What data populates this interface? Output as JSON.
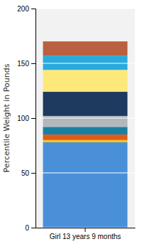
{
  "chart_data": {
    "type": "bar",
    "stacked": true,
    "categories": [
      "Girl 13 years 9 months"
    ],
    "ylabel": "Percentile Weight in Pounds",
    "series": [
      {
        "color": "#4a90d9",
        "values": [
          78
        ]
      },
      {
        "color": "#f5c518",
        "values": [
          2
        ]
      },
      {
        "color": "#e05a1a",
        "values": [
          5
        ]
      },
      {
        "color": "#1a7fa0",
        "values": [
          7
        ]
      },
      {
        "color": "#b0b8bc",
        "values": [
          10
        ]
      },
      {
        "color": "#1e3a5f",
        "values": [
          22
        ]
      },
      {
        "color": "#fde87a",
        "values": [
          20
        ]
      },
      {
        "color": "#29aadf",
        "values": [
          13
        ]
      },
      {
        "color": "#b86040",
        "values": [
          13
        ]
      }
    ],
    "ylim": [
      0,
      200
    ],
    "yticks": [
      0,
      50,
      100,
      150,
      200
    ],
    "grid": true
  }
}
